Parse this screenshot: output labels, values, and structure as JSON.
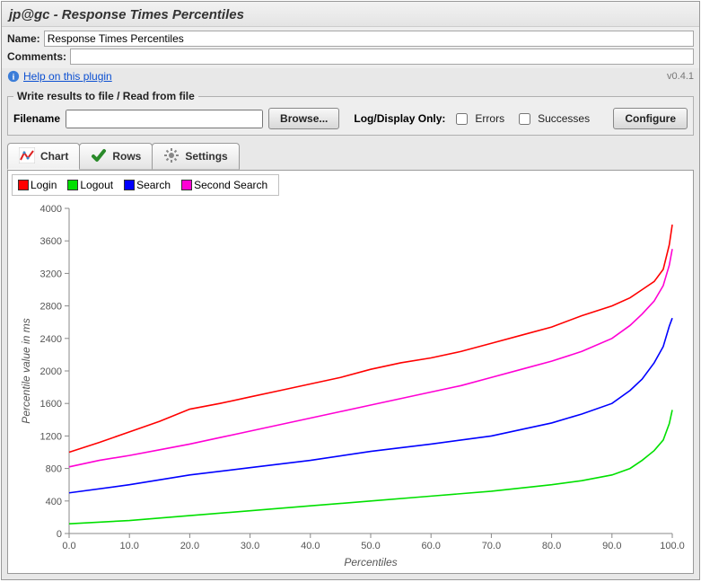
{
  "window": {
    "title": "jp@gc - Response Times Percentiles"
  },
  "form": {
    "name_label": "Name:",
    "name_value": "Response Times Percentiles",
    "comments_label": "Comments:",
    "comments_value": ""
  },
  "help": {
    "link_text": "Help on this plugin",
    "version": "v0.4.1"
  },
  "file_group": {
    "legend": "Write results to file / Read from file",
    "filename_label": "Filename",
    "filename_value": "",
    "browse_label": "Browse...",
    "log_display_label": "Log/Display Only:",
    "errors_label": "Errors",
    "successes_label": "Successes",
    "configure_label": "Configure"
  },
  "tabs": {
    "chart": "Chart",
    "rows": "Rows",
    "settings": "Settings",
    "active": "chart"
  },
  "chart": {
    "type": "line",
    "xlabel": "Percentiles",
    "ylabel": "Percentile value in ms",
    "xlim": [
      0,
      100
    ],
    "ylim": [
      0,
      4000
    ],
    "xtick_step": 10,
    "ytick_step": 400,
    "xtick_decimals": 1,
    "background_color": "#ffffff",
    "axis_color": "#888888",
    "tick_font_size": 11,
    "label_font_size": 12,
    "line_width": 1.6,
    "series": [
      {
        "name": "Login",
        "color": "#ff0000",
        "data": [
          [
            0,
            1000
          ],
          [
            5,
            1120
          ],
          [
            10,
            1250
          ],
          [
            15,
            1380
          ],
          [
            20,
            1530
          ],
          [
            25,
            1600
          ],
          [
            30,
            1680
          ],
          [
            35,
            1760
          ],
          [
            40,
            1840
          ],
          [
            45,
            1920
          ],
          [
            50,
            2020
          ],
          [
            55,
            2100
          ],
          [
            60,
            2160
          ],
          [
            65,
            2240
          ],
          [
            70,
            2340
          ],
          [
            75,
            2440
          ],
          [
            80,
            2540
          ],
          [
            85,
            2680
          ],
          [
            90,
            2800
          ],
          [
            93,
            2900
          ],
          [
            95,
            3000
          ],
          [
            97,
            3100
          ],
          [
            98.5,
            3250
          ],
          [
            99.5,
            3550
          ],
          [
            100,
            3800
          ]
        ]
      },
      {
        "name": "Logout",
        "color": "#00e000",
        "data": [
          [
            0,
            120
          ],
          [
            10,
            160
          ],
          [
            20,
            220
          ],
          [
            30,
            280
          ],
          [
            40,
            340
          ],
          [
            50,
            400
          ],
          [
            60,
            460
          ],
          [
            70,
            520
          ],
          [
            80,
            600
          ],
          [
            85,
            650
          ],
          [
            90,
            720
          ],
          [
            93,
            800
          ],
          [
            95,
            900
          ],
          [
            97,
            1020
          ],
          [
            98.5,
            1150
          ],
          [
            99.5,
            1350
          ],
          [
            100,
            1520
          ]
        ]
      },
      {
        "name": "Search",
        "color": "#0000ff",
        "data": [
          [
            0,
            500
          ],
          [
            10,
            600
          ],
          [
            20,
            720
          ],
          [
            30,
            810
          ],
          [
            40,
            900
          ],
          [
            50,
            1010
          ],
          [
            60,
            1100
          ],
          [
            70,
            1200
          ],
          [
            75,
            1280
          ],
          [
            80,
            1360
          ],
          [
            85,
            1470
          ],
          [
            90,
            1600
          ],
          [
            93,
            1760
          ],
          [
            95,
            1900
          ],
          [
            97,
            2100
          ],
          [
            98.5,
            2300
          ],
          [
            99.5,
            2550
          ],
          [
            100,
            2650
          ]
        ]
      },
      {
        "name": "Second Search",
        "color": "#ff00d4",
        "data": [
          [
            0,
            820
          ],
          [
            5,
            900
          ],
          [
            10,
            960
          ],
          [
            15,
            1030
          ],
          [
            20,
            1100
          ],
          [
            25,
            1180
          ],
          [
            30,
            1260
          ],
          [
            35,
            1340
          ],
          [
            40,
            1420
          ],
          [
            45,
            1500
          ],
          [
            50,
            1580
          ],
          [
            55,
            1660
          ],
          [
            60,
            1740
          ],
          [
            65,
            1820
          ],
          [
            70,
            1920
          ],
          [
            75,
            2020
          ],
          [
            80,
            2120
          ],
          [
            85,
            2240
          ],
          [
            90,
            2400
          ],
          [
            93,
            2560
          ],
          [
            95,
            2700
          ],
          [
            97,
            2860
          ],
          [
            98.5,
            3050
          ],
          [
            99.5,
            3300
          ],
          [
            100,
            3500
          ]
        ]
      }
    ]
  }
}
